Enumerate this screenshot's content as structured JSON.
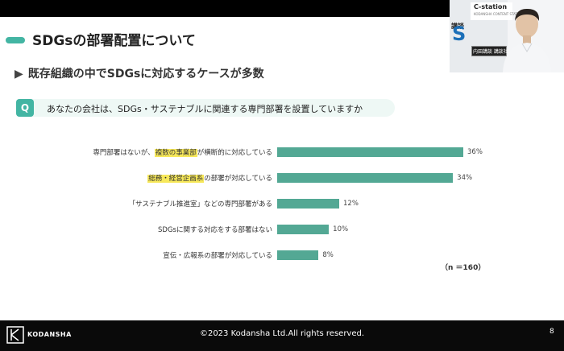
{
  "slide": {
    "title": "SDGsの部署配置について",
    "subtitle": "既存組織の中でSDGsに対応するケースが多数",
    "question_badge": "Q",
    "question": "あなたの会社は、SDGs・サステナブルに関連する専門部署を設置していますか",
    "sample_size": "（n ＝160）"
  },
  "chart_data": {
    "type": "bar",
    "orientation": "horizontal",
    "categories": [
      {
        "pre": "専門部署はないが、",
        "highlight": "複数の事業部",
        "post": "が横断的に対応している"
      },
      {
        "pre": "",
        "highlight": "総務・経営企画系",
        "post": "の部署が対応している"
      },
      {
        "pre": "「サステナブル推進室」などの専門部署がある",
        "highlight": "",
        "post": ""
      },
      {
        "pre": "SDGsに関する対応をする部署はない",
        "highlight": "",
        "post": ""
      },
      {
        "pre": "宣伝・広報系の部署が対応している",
        "highlight": "",
        "post": ""
      }
    ],
    "values": [
      36,
      34,
      12,
      10,
      8
    ],
    "value_labels": [
      "36%",
      "34%",
      "12%",
      "10%",
      "8%"
    ],
    "unit": "%",
    "bar_color": "#53a894",
    "highlight_color": "#f7e85a",
    "xlim": [
      0,
      40
    ]
  },
  "footer": {
    "logo_text": "KODANSHA",
    "copyright": "©2023 Kodansha Ltd.All rights reserved.",
    "page_number": "8"
  },
  "video": {
    "station_label": "C-station",
    "station_sub": "KODANSHA CONTENT STATION",
    "side_text": "講談",
    "logo_letter": "S",
    "nameplate": "内田講談 講談社"
  },
  "colors": {
    "accent": "#43b5a3",
    "question_bg": "#eef8f5"
  }
}
